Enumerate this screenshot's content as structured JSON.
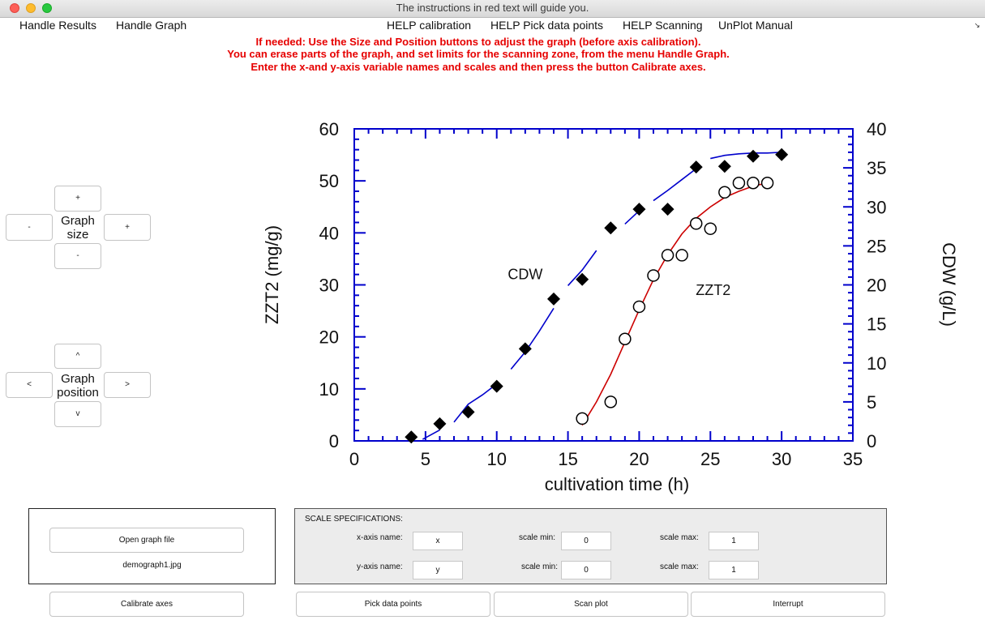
{
  "window": {
    "title": "The instructions in red text will guide you."
  },
  "menu": {
    "items": [
      "Handle Results",
      "Handle Graph",
      "HELP calibration",
      "HELP Pick data points",
      "HELP Scanning",
      "UnPlot Manual"
    ],
    "overflow": "↘"
  },
  "instructions": [
    "If needed: Use the Size and Position buttons to adjust the graph (before axis calibration).",
    "You can erase parts of the graph, and set limits for the scanning zone, from the menu Handle Graph.",
    "Enter the x-and y-axis variable names and scales and then press the button Calibrate axes."
  ],
  "size_controls": {
    "label_line1": "Graph",
    "label_line2": "size",
    "up": "+",
    "down": "-",
    "left": "-",
    "right": "+"
  },
  "position_controls": {
    "label_line1": "Graph",
    "label_line2": "position",
    "up": "^",
    "down": "v",
    "left": "<",
    "right": ">"
  },
  "file_panel": {
    "open_button": "Open graph file",
    "filename": "demograph1.jpg"
  },
  "scale_panel": {
    "title": "SCALE SPECIFICATIONS:",
    "x_name_label": "x-axis name:",
    "x_name": "x",
    "x_min_label": "scale min:",
    "x_min": "0",
    "x_max_label": "scale max:",
    "x_max": "1",
    "y_name_label": "y-axis name:",
    "y_name": "y",
    "y_min_label": "scale min:",
    "y_min": "0",
    "y_max_label": "scale max:",
    "y_max": "1"
  },
  "buttons": {
    "calibrate": "Calibrate axes",
    "pick": "Pick data points",
    "scan": "Scan plot",
    "interrupt": "Interrupt"
  },
  "colors": {
    "instruction_red": "#e60000",
    "axis_blue": "#0000cc",
    "fit_red": "#cc0000",
    "fit_blue": "#0000cc"
  },
  "chart_data": {
    "type": "scatter",
    "xlabel": "cultivation time (h)",
    "ylabel": "ZZT2 (mg/g)",
    "y2label": "CDW (g/L)",
    "xlim": [
      0,
      35
    ],
    "ylim": [
      0,
      60
    ],
    "y2lim": [
      0,
      40
    ],
    "x_ticks": [
      "0",
      "5",
      "10",
      "15",
      "20",
      "25",
      "30",
      "35"
    ],
    "y_ticks": [
      "0",
      "10",
      "20",
      "30",
      "40",
      "50",
      "60"
    ],
    "y2_ticks": [
      "0",
      "5",
      "10",
      "15",
      "20",
      "25",
      "30",
      "35",
      "40"
    ],
    "annotations": [
      {
        "text": "CDW",
        "x": 12,
        "y": 32
      },
      {
        "text": "ZZT2",
        "x": 25.2,
        "y": 29
      }
    ],
    "series": [
      {
        "marker": "filled-diamond",
        "axis": "right",
        "x": [
          4,
          6,
          8,
          10,
          12,
          14,
          16,
          18,
          20,
          22,
          24,
          26,
          28,
          30
        ],
        "y": [
          0.5,
          2.2,
          3.7,
          7.0,
          11.8,
          18.2,
          20.7,
          27.3,
          29.7,
          29.7,
          35.1,
          35.2,
          36.5,
          36.7
        ]
      },
      {
        "marker": "open-circle",
        "axis": "left",
        "x": [
          16,
          18,
          19,
          20,
          21,
          22,
          23,
          24,
          25,
          26,
          27,
          28,
          29
        ],
        "y": [
          4.3,
          7.5,
          19.6,
          25.8,
          31.8,
          35.7,
          35.7,
          41.8,
          40.8,
          47.8,
          49.6,
          49.6,
          49.6
        ]
      }
    ],
    "fit_cdw": {
      "x": [
        4.8,
        5.4,
        6,
        7,
        8,
        9,
        10,
        11,
        12,
        13,
        14,
        15,
        16,
        17,
        18,
        19,
        20,
        21,
        22,
        23,
        24,
        25,
        26,
        27,
        28,
        29,
        30
      ],
      "y": [
        0.2,
        0.8,
        1.4,
        2.4,
        4.7,
        5.9,
        7.3,
        9.2,
        11.4,
        14.1,
        17.0,
        19.9,
        21.9,
        24.4,
        25.8,
        27.8,
        29.5,
        30.8,
        32.1,
        33.5,
        34.9,
        36.2,
        36.6,
        36.8,
        36.9,
        36.9,
        37.0
      ],
      "gaps": [
        6.3,
        10.7,
        14.5,
        17.5,
        18.6,
        20.8,
        24.6
      ]
    },
    "fit_zzt2": {
      "x": [
        16,
        17,
        18,
        19,
        20,
        21,
        22,
        23,
        24,
        25,
        26,
        27,
        28,
        29
      ],
      "y": [
        3.0,
        7.5,
        12.8,
        19.0,
        25.2,
        31.0,
        35.8,
        39.8,
        42.8,
        45.0,
        46.8,
        48.0,
        49.0,
        49.6
      ]
    }
  }
}
